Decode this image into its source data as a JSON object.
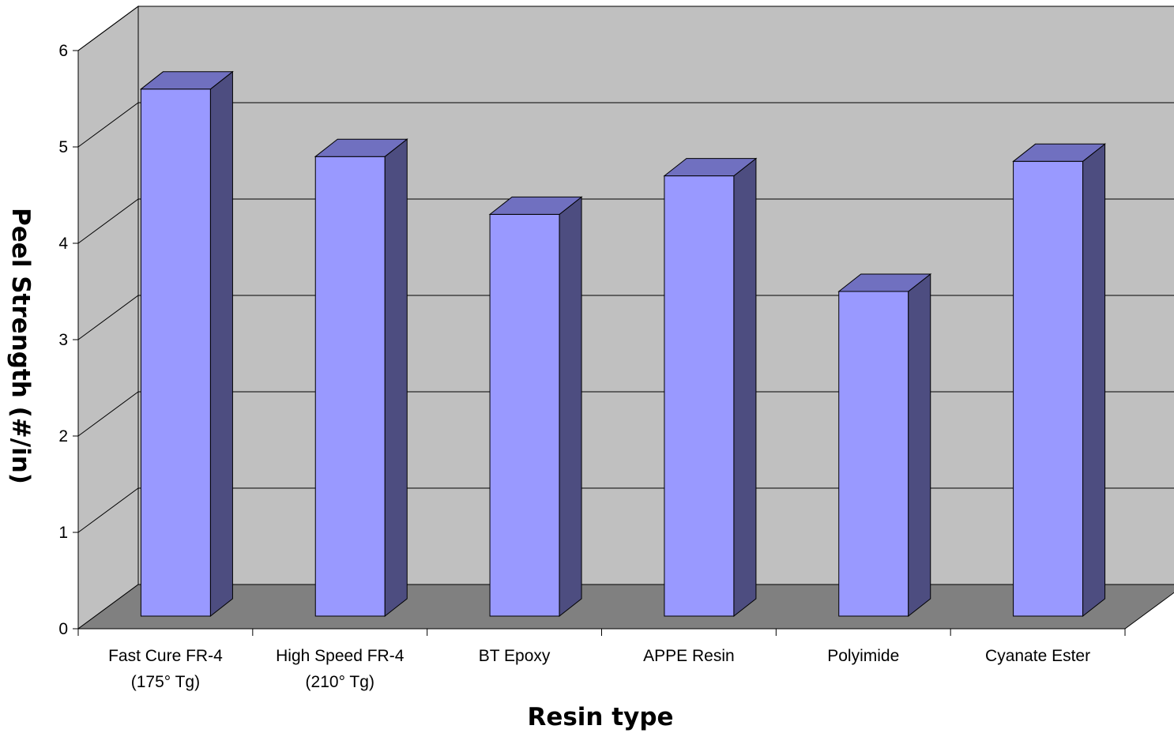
{
  "chart_data": {
    "type": "bar",
    "title": "",
    "xlabel": "Resin type",
    "ylabel": "Peel Strength (#/in)",
    "categories": [
      [
        "Fast Cure FR-4",
        "(175° Tg)"
      ],
      [
        "High Speed FR-4",
        "(210° Tg)"
      ],
      [
        "BT Epoxy"
      ],
      [
        "APPE Resin"
      ],
      [
        "Polyimide"
      ],
      [
        "Cyanate Ester"
      ]
    ],
    "values": [
      5.6,
      4.9,
      4.3,
      4.7,
      3.5,
      4.85
    ],
    "ylim": [
      0,
      6
    ],
    "yticks": [
      "0",
      "1",
      "2",
      "3",
      "4",
      "5",
      "6"
    ],
    "grid": true,
    "legend": "none",
    "colors": {
      "bar_front": "#9999FF",
      "bar_side": "#4D4D80",
      "bar_top": "#7070C0",
      "back_wall": "#C0C0C0",
      "side_wall": "#C0C0C0",
      "floor": "#808080"
    }
  }
}
